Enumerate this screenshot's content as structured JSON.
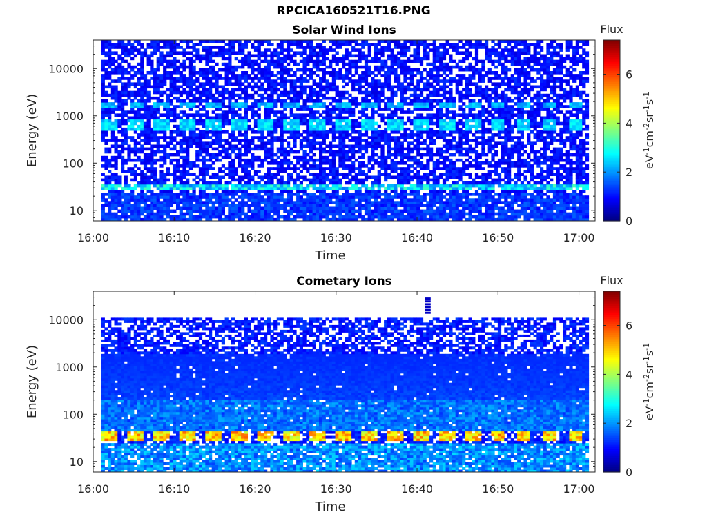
{
  "figure": {
    "title": "RPCICA160521T16.PNG"
  },
  "chart_data": [
    {
      "type": "heatmap",
      "title": "Solar Wind Ions",
      "xlabel": "Time",
      "ylabel": "Energy (eV)",
      "y_scale": "log",
      "ylim": [
        6,
        40000
      ],
      "xlim": [
        "16:00",
        "17:02"
      ],
      "x_ticks": [
        "16:00",
        "16:10",
        "16:20",
        "16:30",
        "16:40",
        "16:50",
        "17:00"
      ],
      "y_ticks": [
        "10",
        "100",
        "1000",
        "10000"
      ],
      "colorbar": {
        "label": "Flux",
        "unit": "eV-1cm-2sr-1s-1",
        "ticks": [
          "0",
          "2",
          "4",
          "6"
        ],
        "range": [
          0,
          7.4
        ],
        "colormap": "jet"
      },
      "time_range_data": [
        "16:01",
        "17:01"
      ],
      "features": [
        {
          "energy_eV": [
            500,
            800
          ],
          "flux_level": 2.8,
          "periodicity_min": 3.2
        },
        {
          "energy_eV": [
            1500,
            2000
          ],
          "flux_level": 2.5,
          "periodicity_min": 3.2
        },
        {
          "energy_eV": [
            28,
            36
          ],
          "flux_level": 3.0
        },
        {
          "energy_eV": [
            6,
            25
          ],
          "flux_level": 1.5
        }
      ],
      "background_flux": 0.7
    },
    {
      "type": "heatmap",
      "title": "Cometary Ions",
      "xlabel": "Time",
      "ylabel": "Energy (eV)",
      "y_scale": "log",
      "ylim": [
        6,
        40000
      ],
      "xlim": [
        "16:00",
        "17:02"
      ],
      "x_ticks": [
        "16:00",
        "16:10",
        "16:20",
        "16:30",
        "16:40",
        "16:50",
        "17:00"
      ],
      "y_ticks": [
        "10",
        "100",
        "1000",
        "10000"
      ],
      "colorbar": {
        "label": "Flux",
        "unit": "eV-1cm-2sr-1s-1",
        "ticks": [
          "0",
          "2",
          "4",
          "6"
        ],
        "range": [
          0,
          7.4
        ],
        "colormap": "jet"
      },
      "time_range_data": [
        "16:01",
        "17:01"
      ],
      "features": [
        {
          "energy_eV": [
            28,
            45
          ],
          "flux_level": 5.5,
          "periodicity_min": 3.2
        },
        {
          "energy_eV": [
            45,
            200
          ],
          "flux_level": 2.0
        },
        {
          "energy_eV": [
            6,
            25
          ],
          "flux_level": 2.3
        },
        {
          "energy_eV": [
            14000,
            28000
          ],
          "flux_level": 0.5,
          "time": "16:41"
        }
      ],
      "max_energy_eV": 11000,
      "background_flux": 0.8
    }
  ]
}
